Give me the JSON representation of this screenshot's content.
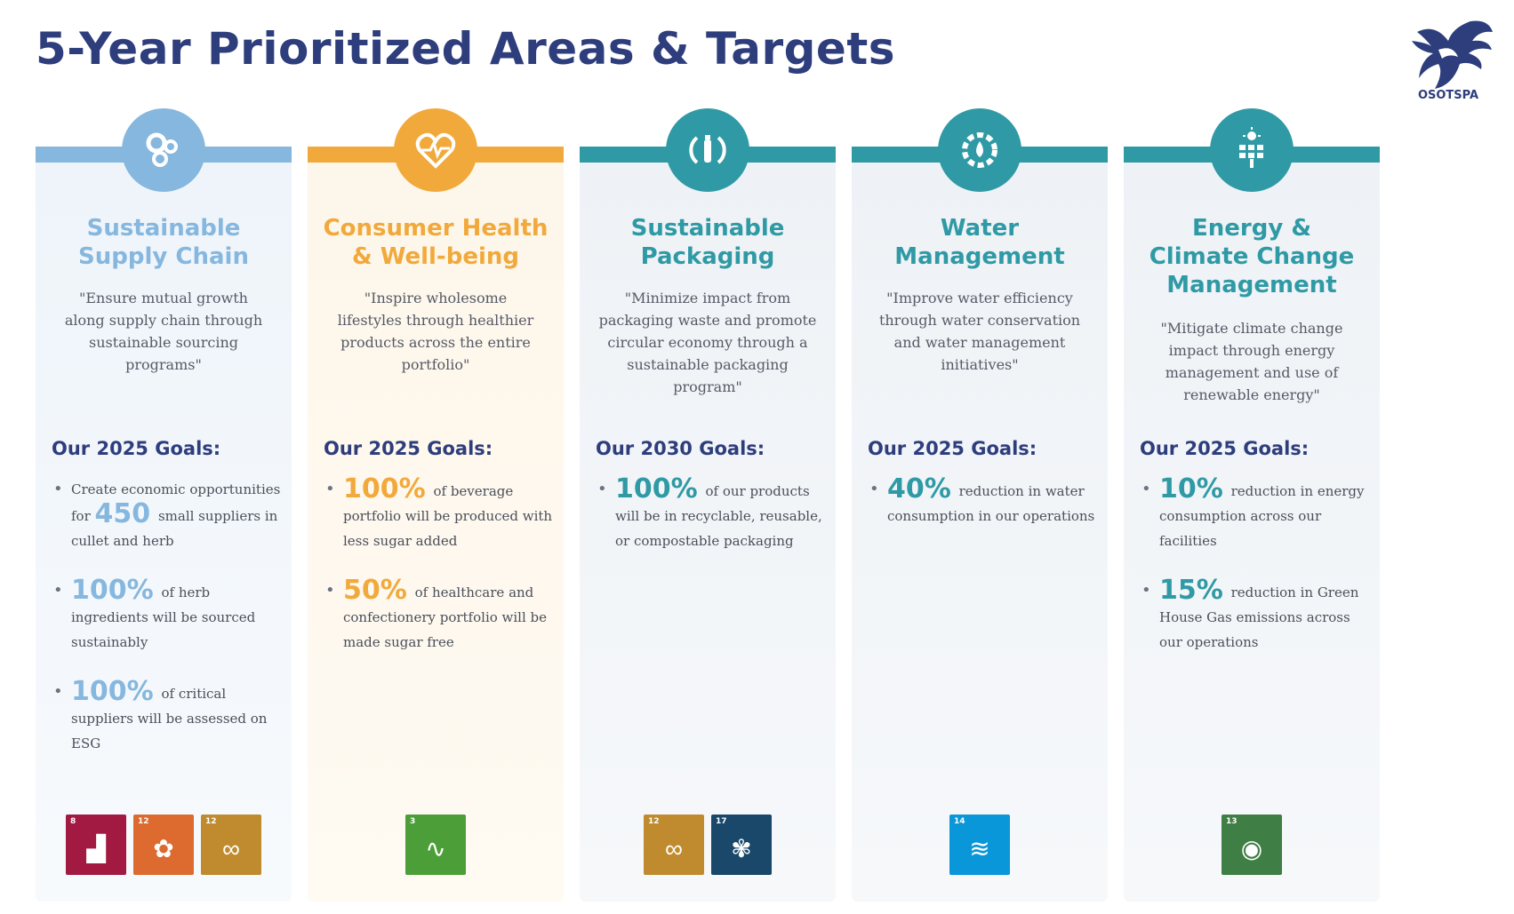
{
  "title": "5-Year Prioritized Areas & Targets",
  "logo_text": "OSOTSPA",
  "columns": [
    {
      "heading": "Sustainable Supply Chain",
      "quote": "\"Ensure mutual growth along supply chain through sustainable sourcing programs\"",
      "goals_heading": "Our 2025 Goals:",
      "goals": [
        {
          "big": "",
          "text": "Create economic opportunities for",
          "trailing_big": "450",
          "text2": "small suppliers in cullet and herb"
        },
        {
          "big": "100%",
          "text": "of herb ingredients will be sourced sustainably"
        },
        {
          "big": "100%",
          "text": "of critical suppliers will be assessed on ESG"
        }
      ],
      "sdgs": [
        {
          "number": "8",
          "color": "#a21942",
          "icon": "growth-chart-icon"
        },
        {
          "number": "12",
          "color": "#bf8b2e",
          "icon": "infinity-icon"
        },
        {
          "number": "12",
          "color": "#bf8b2e",
          "icon": "infinity-icon"
        }
      ],
      "accent": "#86b7de"
    },
    {
      "heading": "Consumer Health & Well-being",
      "quote": "\"Inspire wholesome lifestyles through healthier products across the entire portfolio\"",
      "goals_heading": "Our 2025 Goals:",
      "goals": [
        {
          "big": "100%",
          "text": "of beverage portfolio will be produced with less sugar added"
        },
        {
          "big": "50%",
          "text": "of healthcare and confectionery portfolio will be made sugar free"
        }
      ],
      "sdgs": [
        {
          "number": "3",
          "color": "#4c9f38",
          "icon": "heartbeat-icon"
        }
      ],
      "accent": "#f2a93b"
    },
    {
      "heading": "Sustainable Packaging",
      "quote": "\"Minimize impact from packaging waste and promote circular economy through a sustainable packaging program\"",
      "goals_heading": "Our 2030 Goals:",
      "goals": [
        {
          "big": "100%",
          "text": "of our products will be in recyclable, reusable, or compostable packaging"
        }
      ],
      "sdgs": [
        {
          "number": "12",
          "color": "#bf8b2e",
          "icon": "infinity-icon"
        },
        {
          "number": "17",
          "color": "#19486a",
          "icon": "partnership-icon"
        }
      ],
      "accent": "#2f9aa5"
    },
    {
      "heading": "Water Management",
      "quote": "\"Improve water efficiency through water conservation and water management initiatives\"",
      "goals_heading": "Our 2025 Goals:",
      "goals": [
        {
          "big": "40%",
          "text": "reduction in water consumption in our operations"
        }
      ],
      "sdgs": [
        {
          "number": "14",
          "color": "#0a97d9",
          "icon": "fish-icon"
        }
      ],
      "accent": "#2f9aa5"
    },
    {
      "heading": "Energy & Climate Change Management",
      "quote": "\"Mitigate climate change impact through energy management and use of renewable energy\"",
      "goals_heading": "Our 2025 Goals:",
      "goals": [
        {
          "big": "10%",
          "text": "reduction in energy consumption across our facilities"
        },
        {
          "big": "15%",
          "text": "reduction in Green House Gas emissions across our operations"
        }
      ],
      "sdgs": [
        {
          "number": "13",
          "color": "#3f7e44",
          "icon": "eye-globe-icon"
        }
      ],
      "accent": "#2f9aa5"
    }
  ]
}
